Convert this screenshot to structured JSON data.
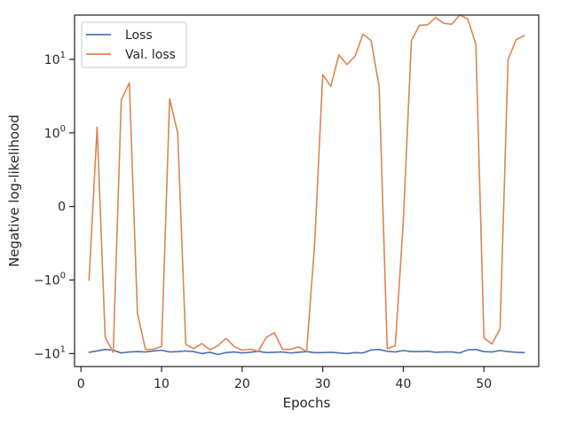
{
  "chart_data": {
    "type": "line",
    "title": "",
    "xlabel": "Epochs",
    "ylabel": "Negative log-likelihood",
    "yscale": "symlog",
    "xlim": [
      -0.8,
      56.8
    ],
    "ylim": [
      -15,
      40
    ],
    "grid": false,
    "legend_position": "top-left",
    "x_ticks": [
      {
        "value": 0,
        "label": "0"
      },
      {
        "value": 10,
        "label": "10"
      },
      {
        "value": 20,
        "label": "20"
      },
      {
        "value": 30,
        "label": "30"
      },
      {
        "value": 40,
        "label": "40"
      },
      {
        "value": 50,
        "label": "50"
      }
    ],
    "y_ticks": [
      {
        "value": -10,
        "base": "−10",
        "exp": "1"
      },
      {
        "value": -1,
        "base": "−10",
        "exp": "0"
      },
      {
        "value": 0,
        "base": "0",
        "exp": ""
      },
      {
        "value": 1,
        "base": "10",
        "exp": "0"
      },
      {
        "value": 10,
        "base": "10",
        "exp": "1"
      }
    ],
    "series": [
      {
        "name": "Loss",
        "color": "#4c72b0",
        "x": [
          1,
          2,
          3,
          4,
          5,
          6,
          7,
          8,
          9,
          10,
          11,
          12,
          13,
          14,
          15,
          16,
          17,
          18,
          19,
          20,
          21,
          22,
          23,
          24,
          25,
          26,
          27,
          28,
          29,
          30,
          31,
          32,
          33,
          34,
          35,
          36,
          37,
          38,
          39,
          40,
          41,
          42,
          43,
          44,
          45,
          46,
          47,
          48,
          49,
          50,
          51,
          52,
          53,
          54,
          55
        ],
        "y": [
          -9.6,
          -9.2,
          -8.8,
          -9.0,
          -9.8,
          -9.5,
          -9.4,
          -9.5,
          -9.2,
          -9.0,
          -9.5,
          -9.4,
          -9.2,
          -9.4,
          -10.0,
          -9.6,
          -10.3,
          -9.7,
          -9.5,
          -9.8,
          -9.6,
          -9.3,
          -9.7,
          -9.6,
          -9.5,
          -9.8,
          -9.6,
          -9.4,
          -9.7,
          -9.7,
          -9.6,
          -9.8,
          -10.0,
          -9.7,
          -9.8,
          -8.9,
          -8.8,
          -9.3,
          -9.5,
          -9.1,
          -9.4,
          -9.4,
          -9.3,
          -9.6,
          -9.5,
          -9.5,
          -9.8,
          -8.9,
          -8.8,
          -9.4,
          -9.5,
          -9.1,
          -9.4,
          -9.6,
          -9.7
        ]
      },
      {
        "name": "Val. loss",
        "color": "#dd8452",
        "x": [
          1,
          2,
          3,
          4,
          5,
          6,
          7,
          8,
          9,
          10,
          11,
          12,
          13,
          14,
          15,
          16,
          17,
          18,
          19,
          20,
          21,
          22,
          23,
          24,
          25,
          26,
          27,
          28,
          29,
          30,
          31,
          32,
          33,
          34,
          35,
          36,
          37,
          38,
          39,
          40,
          41,
          42,
          43,
          44,
          45,
          46,
          47,
          48,
          49,
          50,
          51,
          52,
          53,
          54,
          55
        ],
        "y": [
          -1.0,
          1.2,
          -6.0,
          -9.6,
          2.8,
          4.8,
          -2.8,
          -8.8,
          -8.7,
          -8.0,
          2.9,
          1.0,
          -7.5,
          -8.6,
          -7.3,
          -8.9,
          -7.8,
          -6.2,
          -8.0,
          -9.0,
          -8.7,
          -9.3,
          -6.0,
          -5.2,
          -8.7,
          -8.8,
          -8.1,
          -9.4,
          -0.5,
          6.2,
          4.3,
          11.5,
          8.5,
          11.0,
          22.0,
          18.0,
          4.2,
          -8.6,
          -7.8,
          -0.2,
          18.0,
          29.0,
          29.5,
          37.0,
          31.0,
          30.0,
          40.0,
          35.5,
          16.0,
          -6.1,
          -7.4,
          -4.6,
          10.0,
          18.5,
          21.0
        ]
      }
    ]
  }
}
